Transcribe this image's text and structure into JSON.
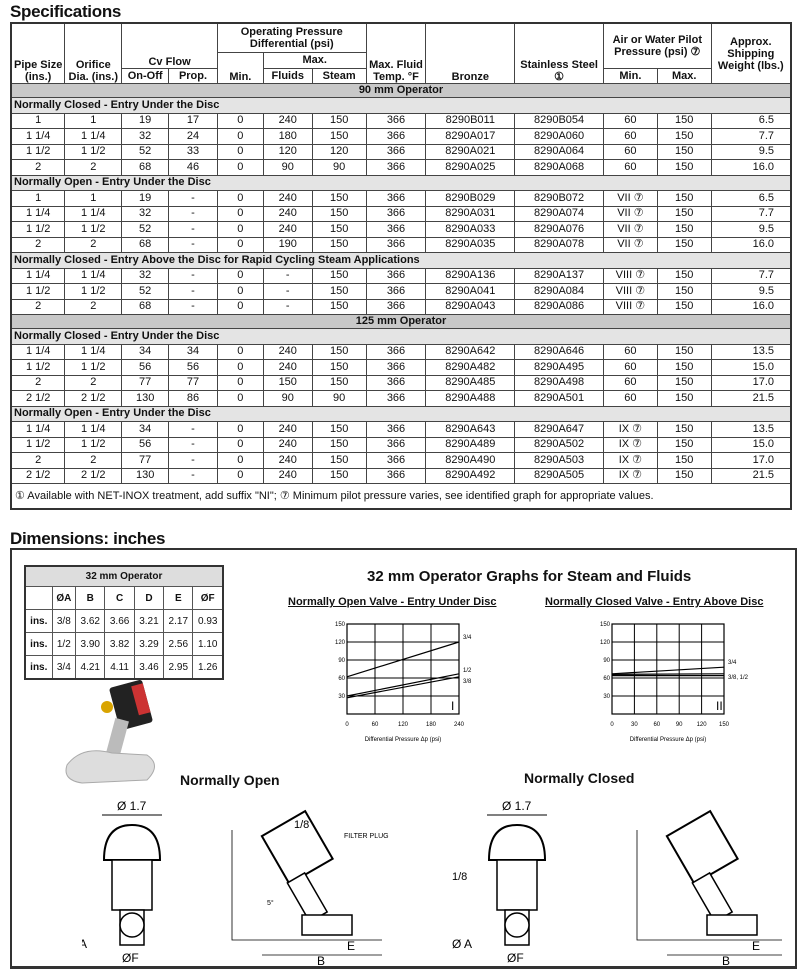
{
  "specifications": {
    "title": "Specifications",
    "headers": {
      "pipe_size": "Pipe Size (ins.)",
      "orifice": "Orifice Dia. (ins.)",
      "cv_flow": "Cv Flow",
      "on_off": "On-Off",
      "prop": "Prop.",
      "op_pressure": "Operating Pressure Differential (psi)",
      "min": "Min.",
      "max": "Max.",
      "fluids": "Fluids",
      "steam": "Steam",
      "max_temp": "Max. Fluid Temp. °F",
      "bronze": "Bronze",
      "stainless": "Stainless Steel ①",
      "pilot": "Air or Water Pilot Pressure (psi) ⑦",
      "pilot_min": "Min.",
      "pilot_max": "Max.",
      "weight": "Approx. Shipping Weight (lbs.)"
    },
    "sections": [
      {
        "operator": "90 mm Operator",
        "groups": [
          {
            "label": "Normally Closed - Entry Under the Disc",
            "rows": [
              [
                "1",
                "1",
                "19",
                "17",
                "0",
                "240",
                "150",
                "366",
                "8290B011",
                "8290B054",
                "60",
                "150",
                "6.5"
              ],
              [
                "1 1/4",
                "1 1/4",
                "32",
                "24",
                "0",
                "180",
                "150",
                "366",
                "8290A017",
                "8290A060",
                "60",
                "150",
                "7.7"
              ],
              [
                "1 1/2",
                "1 1/2",
                "52",
                "33",
                "0",
                "120",
                "120",
                "366",
                "8290A021",
                "8290A064",
                "60",
                "150",
                "9.5"
              ],
              [
                "2",
                "2",
                "68",
                "46",
                "0",
                "90",
                "90",
                "366",
                "8290A025",
                "8290A068",
                "60",
                "150",
                "16.0"
              ]
            ]
          },
          {
            "label": "Normally Open - Entry Under the Disc",
            "rows": [
              [
                "1",
                "1",
                "19",
                "-",
                "0",
                "240",
                "150",
                "366",
                "8290B029",
                "8290B072",
                "VII ⑦",
                "150",
                "6.5"
              ],
              [
                "1 1/4",
                "1 1/4",
                "32",
                "-",
                "0",
                "240",
                "150",
                "366",
                "8290A031",
                "8290A074",
                "VII ⑦",
                "150",
                "7.7"
              ],
              [
                "1 1/2",
                "1 1/2",
                "52",
                "-",
                "0",
                "240",
                "150",
                "366",
                "8290A033",
                "8290A076",
                "VII ⑦",
                "150",
                "9.5"
              ],
              [
                "2",
                "2",
                "68",
                "-",
                "0",
                "190",
                "150",
                "366",
                "8290A035",
                "8290A078",
                "VII ⑦",
                "150",
                "16.0"
              ]
            ]
          },
          {
            "label": "Normally Closed - Entry Above the Disc for Rapid Cycling Steam Applications",
            "rows": [
              [
                "1 1/4",
                "1 1/4",
                "32",
                "-",
                "0",
                "-",
                "150",
                "366",
                "8290A136",
                "8290A137",
                "VIII ⑦",
                "150",
                "7.7"
              ],
              [
                "1 1/2",
                "1 1/2",
                "52",
                "-",
                "0",
                "-",
                "150",
                "366",
                "8290A041",
                "8290A084",
                "VIII ⑦",
                "150",
                "9.5"
              ],
              [
                "2",
                "2",
                "68",
                "-",
                "0",
                "-",
                "150",
                "366",
                "8290A043",
                "8290A086",
                "VIII ⑦",
                "150",
                "16.0"
              ]
            ]
          }
        ]
      },
      {
        "operator": "125 mm Operator",
        "groups": [
          {
            "label": "Normally Closed - Entry Under the Disc",
            "rows": [
              [
                "1 1/4",
                "1 1/4",
                "34",
                "34",
                "0",
                "240",
                "150",
                "366",
                "8290A642",
                "8290A646",
                "60",
                "150",
                "13.5"
              ],
              [
                "1 1/2",
                "1 1/2",
                "56",
                "56",
                "0",
                "240",
                "150",
                "366",
                "8290A482",
                "8290A495",
                "60",
                "150",
                "15.0"
              ],
              [
                "2",
                "2",
                "77",
                "77",
                "0",
                "150",
                "150",
                "366",
                "8290A485",
                "8290A498",
                "60",
                "150",
                "17.0"
              ],
              [
                "2 1/2",
                "2 1/2",
                "130",
                "86",
                "0",
                "90",
                "90",
                "366",
                "8290A488",
                "8290A501",
                "60",
                "150",
                "21.5"
              ]
            ]
          },
          {
            "label": "Normally Open - Entry Under the Disc",
            "rows": [
              [
                "1 1/4",
                "1 1/4",
                "34",
                "-",
                "0",
                "240",
                "150",
                "366",
                "8290A643",
                "8290A647",
                "IX ⑦",
                "150",
                "13.5"
              ],
              [
                "1 1/2",
                "1 1/2",
                "56",
                "-",
                "0",
                "240",
                "150",
                "366",
                "8290A489",
                "8290A502",
                "IX ⑦",
                "150",
                "15.0"
              ],
              [
                "2",
                "2",
                "77",
                "-",
                "0",
                "240",
                "150",
                "366",
                "8290A490",
                "8290A503",
                "IX ⑦",
                "150",
                "17.0"
              ],
              [
                "2 1/2",
                "2 1/2",
                "130",
                "-",
                "0",
                "240",
                "150",
                "366",
                "8290A492",
                "8290A505",
                "IX ⑦",
                "150",
                "21.5"
              ]
            ]
          }
        ]
      }
    ],
    "footnote": "① Available with NET-INOX treatment, add suffix \"NI\"; ⑦ Minimum pilot pressure varies, see identified graph for appropriate values."
  },
  "dimensions": {
    "title": "Dimensions: inches",
    "table": {
      "title": "32 mm Operator",
      "headers": [
        "",
        "ØA",
        "B",
        "C",
        "D",
        "E",
        "ØF"
      ],
      "rows": [
        [
          "ins.",
          "3/8",
          "3.62",
          "3.66",
          "3.21",
          "2.17",
          "0.93"
        ],
        [
          "ins.",
          "1/2",
          "3.90",
          "3.82",
          "3.29",
          "2.56",
          "1.10"
        ],
        [
          "ins.",
          "3/4",
          "4.21",
          "4.11",
          "3.46",
          "2.95",
          "1.26"
        ]
      ]
    },
    "graphs_title": "32 mm Operator Graphs for Steam and Fluids",
    "drawings": {
      "normally_open": {
        "title": "Normally Open",
        "labels": {
          "dia": "Ø 1.7",
          "port": "1/8",
          "filter": "FILTER PLUG",
          "a": "Ø A",
          "f": "ØF",
          "b": "B",
          "e": "E",
          "angle": "5°"
        }
      },
      "normally_closed": {
        "title": "Normally Closed",
        "labels": {
          "dia": "Ø 1.7",
          "port": "1/8",
          "a": "Ø A",
          "f": "ØF",
          "b": "B",
          "e": "E"
        }
      }
    }
  },
  "chart_data": [
    {
      "type": "line",
      "title": "Normally Open Valve - Entry Under Disc",
      "xlabel": "Differential Pressure Δp (psi)",
      "ylabel": "",
      "annotation": "I",
      "xlim": [
        0,
        240
      ],
      "ylim": [
        0,
        150
      ],
      "xticks": [
        0,
        60,
        120,
        180,
        240
      ],
      "yticks": [
        30,
        60,
        90,
        120,
        150
      ],
      "grid": true,
      "series": [
        {
          "name": "3/4",
          "x": [
            0,
            240
          ],
          "y": [
            62,
            120
          ]
        },
        {
          "name": "1/2",
          "x": [
            0,
            240
          ],
          "y": [
            30,
            67
          ]
        },
        {
          "name": "3/8",
          "x": [
            0,
            240
          ],
          "y": [
            27,
            62
          ]
        }
      ]
    },
    {
      "type": "line",
      "title": "Normally Closed Valve - Entry Above Disc",
      "xlabel": "Differential Pressure Δp (psi)",
      "ylabel": "",
      "annotation": "II",
      "xlim": [
        0,
        150
      ],
      "ylim": [
        0,
        150
      ],
      "xticks": [
        0,
        30,
        60,
        90,
        120,
        150
      ],
      "yticks": [
        30,
        60,
        90,
        120,
        150
      ],
      "grid": true,
      "series": [
        {
          "name": "3/4",
          "x": [
            0,
            150
          ],
          "y": [
            67,
            78
          ]
        },
        {
          "name": "3/8, 1/2",
          "x": [
            0,
            150
          ],
          "y": [
            66,
            67
          ]
        },
        {
          "name": "",
          "x": [
            0,
            150
          ],
          "y": [
            64,
            64
          ]
        }
      ]
    }
  ]
}
